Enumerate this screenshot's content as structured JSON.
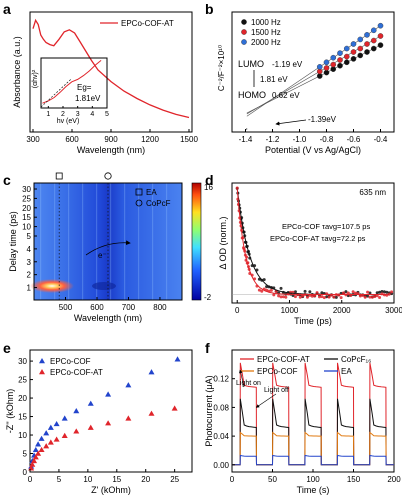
{
  "panel_letters": {
    "a": "a",
    "b": "b",
    "c": "c",
    "d": "d",
    "e": "e",
    "f": "f"
  },
  "chart_data": [
    {
      "id": "a",
      "type": "line",
      "xlabel": "Wavelength (nm)",
      "ylabel": "Absorbance (a.u.)",
      "xlim": [
        300,
        1500
      ],
      "xticks": [
        300,
        600,
        900,
        1200,
        1500
      ],
      "legend": [
        "EPCo-COF-AT"
      ],
      "colors": [
        "#e0252b"
      ],
      "series": [
        {
          "name": "EPCo-COF-AT",
          "x": [
            300,
            320,
            340,
            360,
            380,
            400,
            430,
            460,
            500,
            540,
            580,
            620,
            660,
            700,
            750,
            800,
            900,
            1000,
            1100,
            1200,
            1300,
            1400,
            1500
          ],
          "y": [
            0.92,
            1.0,
            0.96,
            0.86,
            0.82,
            0.79,
            0.77,
            0.76,
            0.82,
            0.89,
            0.91,
            0.88,
            0.8,
            0.72,
            0.62,
            0.53,
            0.42,
            0.33,
            0.26,
            0.2,
            0.15,
            0.11,
            0.08
          ]
        }
      ],
      "inset": {
        "xlabel": "hv (eV)",
        "ylabel": "(αhv)²",
        "xticks": [
          1,
          2,
          3,
          4,
          5
        ],
        "annotation": "Eg=\n1.81eV",
        "x": [
          0.6,
          1.0,
          1.4,
          1.8,
          2.2,
          2.6,
          3.0,
          3.4,
          3.8,
          4.2,
          4.6
        ],
        "y": [
          0.1,
          0.15,
          0.22,
          0.33,
          0.45,
          0.55,
          0.6,
          0.68,
          0.78,
          0.9,
          1.0
        ]
      }
    },
    {
      "id": "b",
      "type": "scatter",
      "xlabel": "Potential (V vs Ag/AgCl)",
      "ylabel": "C⁻²/F⁻²×10¹⁰",
      "xlim": [
        -1.5,
        -0.3
      ],
      "xticks": [
        -1.4,
        -1.2,
        -1.0,
        -0.8,
        -0.6,
        -0.4
      ],
      "legend": [
        "1000 Hz",
        "1500 Hz",
        "2000 Hz"
      ],
      "colors": [
        "#111111",
        "#e0252b",
        "#2f6fd6"
      ],
      "series": [
        {
          "name": "1000 Hz",
          "x": [
            -0.85,
            -0.8,
            -0.75,
            -0.7,
            -0.65,
            -0.6,
            -0.55,
            -0.5,
            -0.45,
            -0.4
          ],
          "y": [
            0.44,
            0.47,
            0.5,
            0.53,
            0.56,
            0.59,
            0.62,
            0.65,
            0.68,
            0.71
          ]
        },
        {
          "name": "1500 Hz",
          "x": [
            -0.85,
            -0.8,
            -0.75,
            -0.7,
            -0.65,
            -0.6,
            -0.55,
            -0.5,
            -0.45,
            -0.4
          ],
          "y": [
            0.48,
            0.51,
            0.54,
            0.58,
            0.61,
            0.65,
            0.68,
            0.72,
            0.75,
            0.79
          ]
        },
        {
          "name": "2000 Hz",
          "x": [
            -0.85,
            -0.8,
            -0.75,
            -0.7,
            -0.65,
            -0.6,
            -0.55,
            -0.5,
            -0.45,
            -0.4
          ],
          "y": [
            0.52,
            0.56,
            0.6,
            0.64,
            0.68,
            0.72,
            0.76,
            0.8,
            0.84,
            0.88
          ]
        }
      ],
      "annotations": {
        "lumo": "LUMO",
        "lumo_value": "-1.19 eV",
        "gap": "1.81 eV",
        "homo": "HOMO",
        "homo_value": "0.62 eV",
        "intercept": "-1.39eV"
      }
    },
    {
      "id": "c",
      "type": "heatmap",
      "xlabel": "Wavelength (nm)",
      "ylabel": "Delay time (ps)",
      "xlim": [
        400,
        870
      ],
      "xticks": [
        500,
        600,
        700,
        800
      ],
      "ylim": [
        0.5,
        30
      ],
      "yticks": [
        1,
        2,
        3,
        4,
        5,
        10,
        15,
        20,
        25,
        30
      ],
      "colorbar": {
        "max_label": "16",
        "min_label": "-2"
      },
      "legend": [
        "EA",
        "CoPcF"
      ],
      "arrow_label": "e⁻"
    },
    {
      "id": "d",
      "type": "scatter",
      "xlabel": "Time (ps)",
      "ylabel": "Δ OD (norm.)",
      "xlim": [
        -100,
        3000
      ],
      "xticks": [
        0,
        1000,
        2000,
        3000
      ],
      "legend": [
        "EPCo-COF τavg=107.5 ps",
        "EPCo-COF-AT τavg=72.2 ps"
      ],
      "colors": [
        "#111111",
        "#e0252b"
      ],
      "annotation": "635 nm",
      "series": [
        {
          "name": "EPCo-COF τavg=107.5 ps",
          "tau": 107.5
        },
        {
          "name": "EPCo-COF-AT τavg=72.2 ps",
          "tau": 72.2
        }
      ]
    },
    {
      "id": "e",
      "type": "scatter",
      "xlabel": "Z' (kOhm)",
      "ylabel": "-Z'' (kOhm)",
      "xlim": [
        0,
        28
      ],
      "ylim": [
        0,
        33
      ],
      "xticks": [
        0,
        5,
        10,
        15,
        20,
        25
      ],
      "yticks": [
        0,
        5,
        10,
        15,
        20,
        25,
        30
      ],
      "legend": [
        "EPCo-COF",
        "EPCo-COF-AT"
      ],
      "colors": [
        "#2244cc",
        "#e0252b"
      ],
      "series": [
        {
          "name": "EPCo-COF",
          "x": [
            0.2,
            0.4,
            0.7,
            1.0,
            1.4,
            2.0,
            2.8,
            3.6,
            4.6,
            6.0,
            8.0,
            10.5,
            13.5,
            17.0,
            21.0,
            25.5
          ],
          "y": [
            1.5,
            3.0,
            4.5,
            6.0,
            7.5,
            9.0,
            10.5,
            12.0,
            13.0,
            14.5,
            16.5,
            18.5,
            21.0,
            23.5,
            27.0,
            30.5
          ]
        },
        {
          "name": "EPCo-COF-AT",
          "x": [
            0.2,
            0.4,
            0.7,
            1.0,
            1.4,
            2.0,
            2.8,
            3.6,
            4.6,
            6.0,
            8.0,
            10.5,
            13.5,
            17.0,
            21.0,
            25.0
          ],
          "y": [
            1.0,
            2.0,
            3.0,
            4.0,
            5.0,
            6.0,
            7.0,
            8.0,
            8.8,
            9.8,
            11.0,
            12.0,
            13.2,
            14.5,
            15.8,
            17.2
          ]
        }
      ]
    },
    {
      "id": "f",
      "type": "line",
      "xlabel": "Time (s)",
      "ylabel": "Photocurrent (μA)",
      "xlim": [
        0,
        200
      ],
      "ylim": [
        -0.01,
        0.16
      ],
      "xticks": [
        0,
        50,
        100,
        150,
        200
      ],
      "yticks": [
        0.0,
        0.04,
        0.08,
        0.12
      ],
      "legend": [
        "EPCo-COF-AT",
        "CoPcF₁₆",
        "EPCo-COF",
        "EA"
      ],
      "colors": [
        "#e0252b",
        "#111111",
        "#e07a10",
        "#2244cc"
      ],
      "on_periods": [
        [
          10,
          30
        ],
        [
          50,
          70
        ],
        [
          90,
          110
        ],
        [
          130,
          150
        ],
        [
          170,
          190
        ]
      ],
      "annotations": {
        "light_on": "Light on",
        "light_off": "Light off"
      },
      "series": [
        {
          "name": "EPCo-COF-AT",
          "peak": 0.142,
          "plateau": 0.108,
          "dark": 0.0
        },
        {
          "name": "CoPcF₁₆",
          "peak": 0.092,
          "plateau": 0.052,
          "dark": 0.0
        },
        {
          "name": "EPCo-COF",
          "peak": 0.045,
          "plateau": 0.04,
          "dark": 0.0
        },
        {
          "name": "EA",
          "peak": 0.013,
          "plateau": 0.012,
          "dark": 0.0
        }
      ]
    }
  ]
}
